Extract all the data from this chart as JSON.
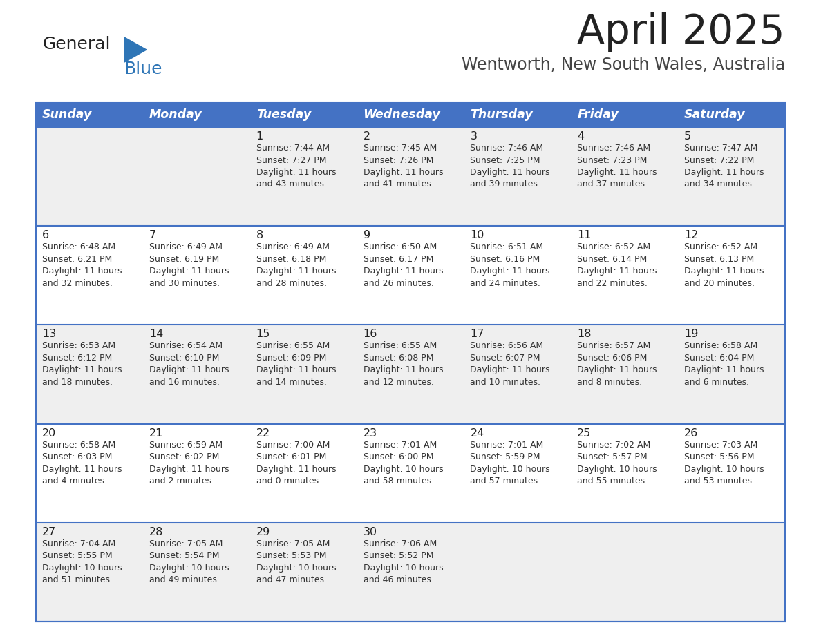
{
  "title": "April 2025",
  "subtitle": "Wentworth, New South Wales, Australia",
  "days_of_week": [
    "Sunday",
    "Monday",
    "Tuesday",
    "Wednesday",
    "Thursday",
    "Friday",
    "Saturday"
  ],
  "header_bg": "#4472C4",
  "header_text": "#FFFFFF",
  "row_bg_even": "#EFEFEF",
  "row_bg_odd": "#FFFFFF",
  "divider_color": "#4472C4",
  "title_color": "#222222",
  "subtitle_color": "#444444",
  "day_number_color": "#222222",
  "cell_text_color": "#333333",
  "logo_general_color": "#222222",
  "logo_blue_color": "#2E75B6",
  "logo_triangle_color": "#2E75B6",
  "calendar": [
    [
      {
        "day": null,
        "info": null
      },
      {
        "day": null,
        "info": null
      },
      {
        "day": 1,
        "info": "Sunrise: 7:44 AM\nSunset: 7:27 PM\nDaylight: 11 hours\nand 43 minutes."
      },
      {
        "day": 2,
        "info": "Sunrise: 7:45 AM\nSunset: 7:26 PM\nDaylight: 11 hours\nand 41 minutes."
      },
      {
        "day": 3,
        "info": "Sunrise: 7:46 AM\nSunset: 7:25 PM\nDaylight: 11 hours\nand 39 minutes."
      },
      {
        "day": 4,
        "info": "Sunrise: 7:46 AM\nSunset: 7:23 PM\nDaylight: 11 hours\nand 37 minutes."
      },
      {
        "day": 5,
        "info": "Sunrise: 7:47 AM\nSunset: 7:22 PM\nDaylight: 11 hours\nand 34 minutes."
      }
    ],
    [
      {
        "day": 6,
        "info": "Sunrise: 6:48 AM\nSunset: 6:21 PM\nDaylight: 11 hours\nand 32 minutes."
      },
      {
        "day": 7,
        "info": "Sunrise: 6:49 AM\nSunset: 6:19 PM\nDaylight: 11 hours\nand 30 minutes."
      },
      {
        "day": 8,
        "info": "Sunrise: 6:49 AM\nSunset: 6:18 PM\nDaylight: 11 hours\nand 28 minutes."
      },
      {
        "day": 9,
        "info": "Sunrise: 6:50 AM\nSunset: 6:17 PM\nDaylight: 11 hours\nand 26 minutes."
      },
      {
        "day": 10,
        "info": "Sunrise: 6:51 AM\nSunset: 6:16 PM\nDaylight: 11 hours\nand 24 minutes."
      },
      {
        "day": 11,
        "info": "Sunrise: 6:52 AM\nSunset: 6:14 PM\nDaylight: 11 hours\nand 22 minutes."
      },
      {
        "day": 12,
        "info": "Sunrise: 6:52 AM\nSunset: 6:13 PM\nDaylight: 11 hours\nand 20 minutes."
      }
    ],
    [
      {
        "day": 13,
        "info": "Sunrise: 6:53 AM\nSunset: 6:12 PM\nDaylight: 11 hours\nand 18 minutes."
      },
      {
        "day": 14,
        "info": "Sunrise: 6:54 AM\nSunset: 6:10 PM\nDaylight: 11 hours\nand 16 minutes."
      },
      {
        "day": 15,
        "info": "Sunrise: 6:55 AM\nSunset: 6:09 PM\nDaylight: 11 hours\nand 14 minutes."
      },
      {
        "day": 16,
        "info": "Sunrise: 6:55 AM\nSunset: 6:08 PM\nDaylight: 11 hours\nand 12 minutes."
      },
      {
        "day": 17,
        "info": "Sunrise: 6:56 AM\nSunset: 6:07 PM\nDaylight: 11 hours\nand 10 minutes."
      },
      {
        "day": 18,
        "info": "Sunrise: 6:57 AM\nSunset: 6:06 PM\nDaylight: 11 hours\nand 8 minutes."
      },
      {
        "day": 19,
        "info": "Sunrise: 6:58 AM\nSunset: 6:04 PM\nDaylight: 11 hours\nand 6 minutes."
      }
    ],
    [
      {
        "day": 20,
        "info": "Sunrise: 6:58 AM\nSunset: 6:03 PM\nDaylight: 11 hours\nand 4 minutes."
      },
      {
        "day": 21,
        "info": "Sunrise: 6:59 AM\nSunset: 6:02 PM\nDaylight: 11 hours\nand 2 minutes."
      },
      {
        "day": 22,
        "info": "Sunrise: 7:00 AM\nSunset: 6:01 PM\nDaylight: 11 hours\nand 0 minutes."
      },
      {
        "day": 23,
        "info": "Sunrise: 7:01 AM\nSunset: 6:00 PM\nDaylight: 10 hours\nand 58 minutes."
      },
      {
        "day": 24,
        "info": "Sunrise: 7:01 AM\nSunset: 5:59 PM\nDaylight: 10 hours\nand 57 minutes."
      },
      {
        "day": 25,
        "info": "Sunrise: 7:02 AM\nSunset: 5:57 PM\nDaylight: 10 hours\nand 55 minutes."
      },
      {
        "day": 26,
        "info": "Sunrise: 7:03 AM\nSunset: 5:56 PM\nDaylight: 10 hours\nand 53 minutes."
      }
    ],
    [
      {
        "day": 27,
        "info": "Sunrise: 7:04 AM\nSunset: 5:55 PM\nDaylight: 10 hours\nand 51 minutes."
      },
      {
        "day": 28,
        "info": "Sunrise: 7:05 AM\nSunset: 5:54 PM\nDaylight: 10 hours\nand 49 minutes."
      },
      {
        "day": 29,
        "info": "Sunrise: 7:05 AM\nSunset: 5:53 PM\nDaylight: 10 hours\nand 47 minutes."
      },
      {
        "day": 30,
        "info": "Sunrise: 7:06 AM\nSunset: 5:52 PM\nDaylight: 10 hours\nand 46 minutes."
      },
      {
        "day": null,
        "info": null
      },
      {
        "day": null,
        "info": null
      },
      {
        "day": null,
        "info": null
      }
    ]
  ]
}
